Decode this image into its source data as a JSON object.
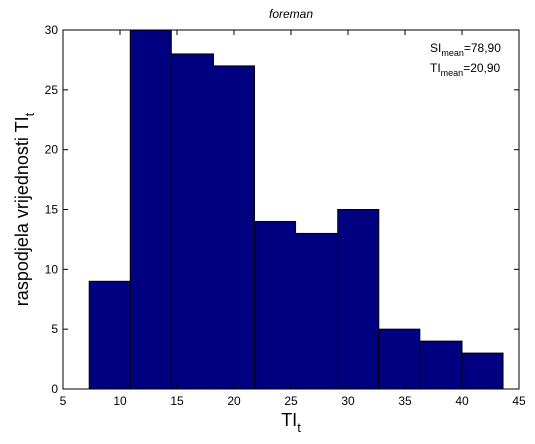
{
  "colors": {
    "bar_fill": "#000080",
    "bar_edge": "#000000",
    "axes": "#000000",
    "background": "#ffffff"
  },
  "chart_data": {
    "type": "bar",
    "subtype": "histogram",
    "title": "foreman",
    "xlabel": {
      "main": "TI",
      "sub": "t"
    },
    "ylabel": {
      "main": "raspodjela vrijednosti TI",
      "sub": "t"
    },
    "xlim": [
      5,
      45
    ],
    "ylim": [
      0,
      30
    ],
    "xticks": [
      5,
      10,
      15,
      20,
      25,
      30,
      35,
      40,
      45
    ],
    "yticks": [
      0,
      5,
      10,
      15,
      20,
      25,
      30
    ],
    "grid": false,
    "bins": [
      {
        "x0": 7.3,
        "x1": 10.9,
        "count": 9
      },
      {
        "x0": 10.9,
        "x1": 14.5,
        "count": 30
      },
      {
        "x0": 14.5,
        "x1": 18.2,
        "count": 28
      },
      {
        "x0": 18.2,
        "x1": 21.8,
        "count": 27
      },
      {
        "x0": 21.8,
        "x1": 25.4,
        "count": 14
      },
      {
        "x0": 25.4,
        "x1": 29.1,
        "count": 13
      },
      {
        "x0": 29.1,
        "x1": 32.7,
        "count": 15
      },
      {
        "x0": 32.7,
        "x1": 36.3,
        "count": 5
      },
      {
        "x0": 36.3,
        "x1": 40.0,
        "count": 4
      },
      {
        "x0": 40.0,
        "x1": 43.6,
        "count": 3
      }
    ],
    "annotations": [
      {
        "main": "SI",
        "sub": "mean",
        "value": "=78,90"
      },
      {
        "main": "TI",
        "sub": "mean",
        "value": "=20,90"
      }
    ]
  }
}
